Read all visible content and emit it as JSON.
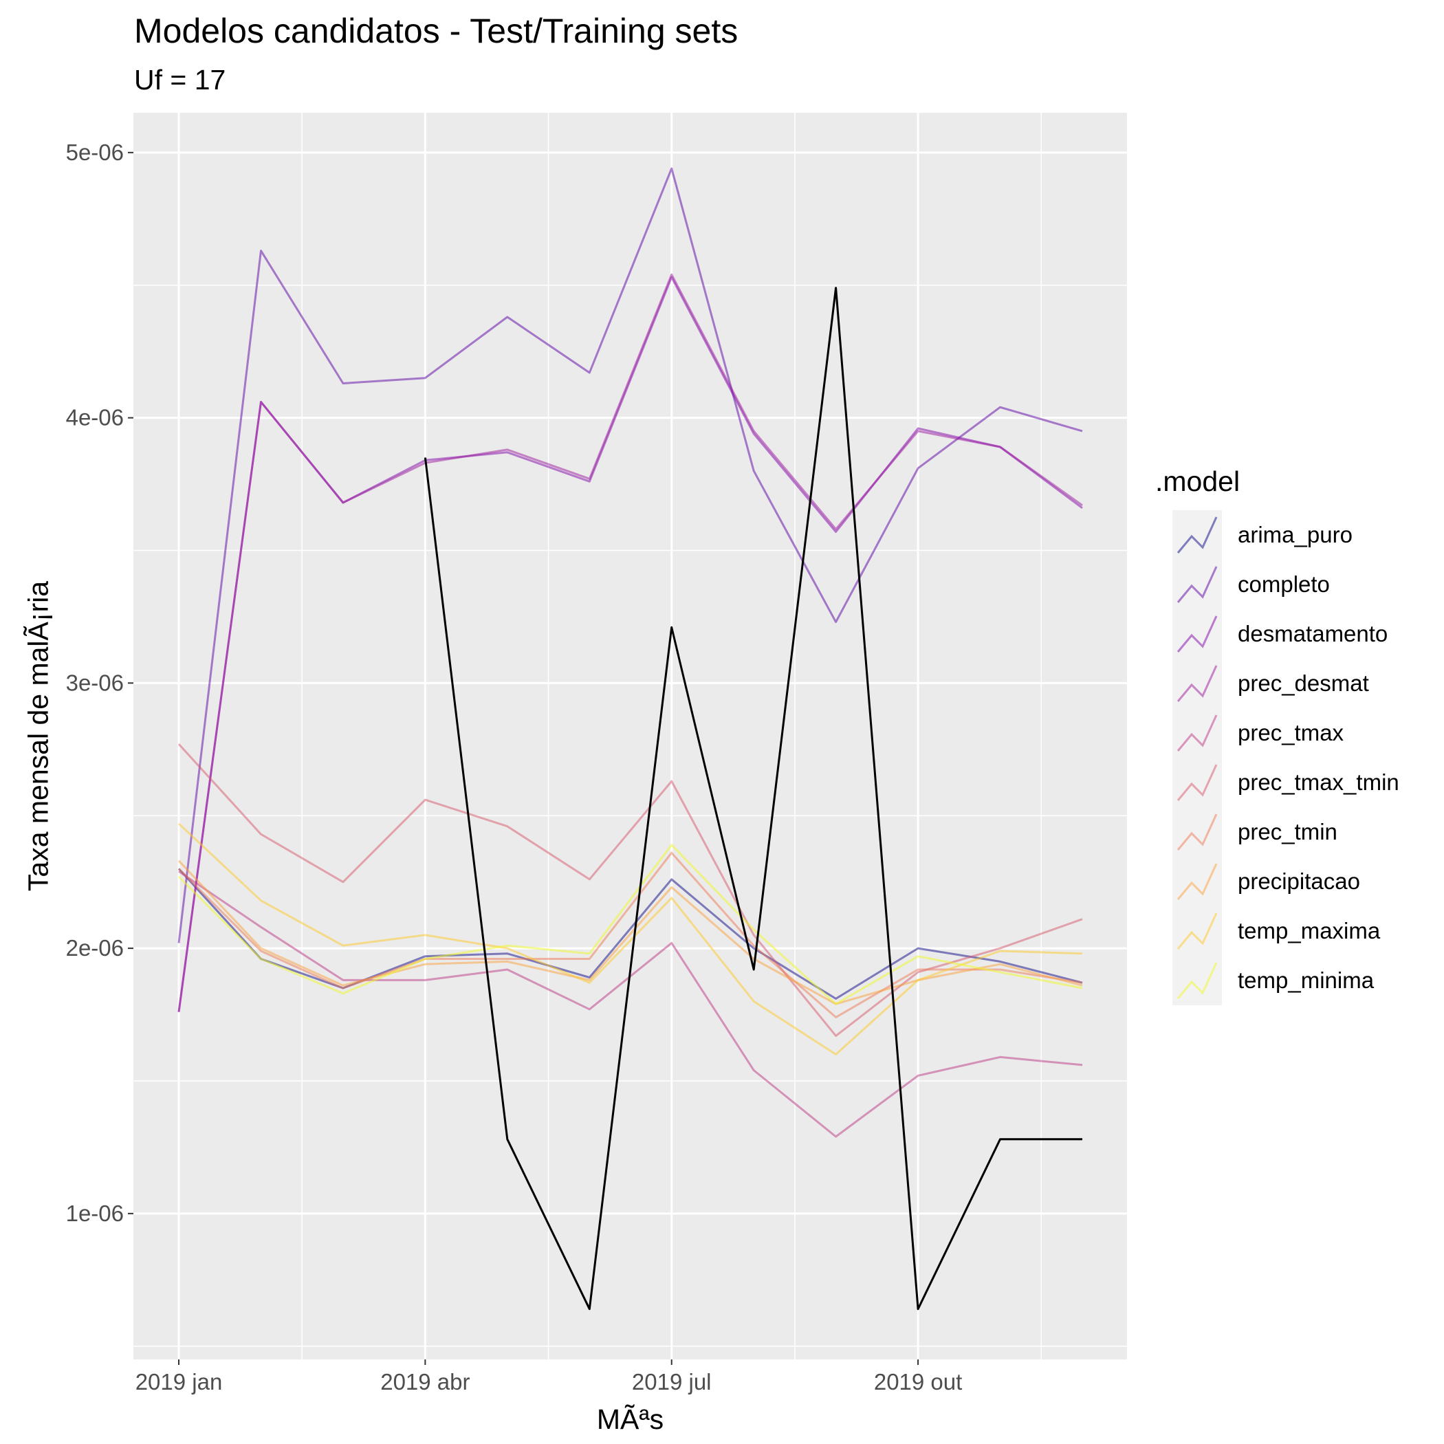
{
  "chart_data": {
    "type": "line",
    "title": "Modelos candidatos - Test/Training sets",
    "subtitle": "Uf = 17",
    "xlabel": "MÃªs",
    "ylabel": "Taxa mensal de malÃ¡ria",
    "x": [
      "2019-01",
      "2019-02",
      "2019-03",
      "2019-04",
      "2019-05",
      "2019-06",
      "2019-07",
      "2019-08",
      "2019-09",
      "2019-10",
      "2019-11",
      "2019-12"
    ],
    "x_tick_labels": [
      "2019 jan",
      "2019 abr",
      "2019 jul",
      "2019 out"
    ],
    "x_tick_months": [
      "2019-01",
      "2019-04",
      "2019-07",
      "2019-10"
    ],
    "y_tick_labels": [
      "1e-06",
      "2e-06",
      "3e-06",
      "4e-06",
      "5e-06"
    ],
    "y_tick_values": [
      1e-06,
      2e-06,
      3e-06,
      4e-06,
      5e-06
    ],
    "ylim": [
      4.5e-07,
      5.15e-06
    ],
    "grid": true,
    "legend_title": ".model",
    "legend_position": "right",
    "actual": {
      "color": "#000000",
      "start_index": 3,
      "values": [
        3.85e-06,
        1.28e-06,
        6.4e-07,
        3.21e-06,
        1.92e-06,
        4.49e-06,
        6.4e-07,
        1.28e-06,
        1.28e-06
      ]
    },
    "series": [
      {
        "name": "arima_puro",
        "color": "#0d0887",
        "values": [
          2.3e-06,
          1.96e-06,
          1.85e-06,
          1.97e-06,
          1.98e-06,
          1.89e-06,
          2.26e-06,
          2e-06,
          1.81e-06,
          2e-06,
          1.95e-06,
          1.87e-06
        ]
      },
      {
        "name": "completo",
        "color": "#5c01a6",
        "values": [
          2.02e-06,
          4.63e-06,
          4.13e-06,
          4.15e-06,
          4.38e-06,
          4.17e-06,
          4.94e-06,
          3.8e-06,
          3.23e-06,
          3.81e-06,
          4.04e-06,
          3.95e-06
        ]
      },
      {
        "name": "desmatamento",
        "color": "#7e03a8",
        "values": [
          1.76e-06,
          4.06e-06,
          3.68e-06,
          3.84e-06,
          3.87e-06,
          3.76e-06,
          4.53e-06,
          3.94e-06,
          3.57e-06,
          3.96e-06,
          3.89e-06,
          3.66e-06
        ]
      },
      {
        "name": "prec_desmat",
        "color": "#9c179e",
        "values": [
          1.76e-06,
          4.06e-06,
          3.68e-06,
          3.83e-06,
          3.88e-06,
          3.77e-06,
          4.54e-06,
          3.95e-06,
          3.58e-06,
          3.95e-06,
          3.89e-06,
          3.67e-06
        ]
      },
      {
        "name": "prec_tmax",
        "color": "#bd3786",
        "values": [
          2.29e-06,
          2.08e-06,
          1.88e-06,
          1.88e-06,
          1.92e-06,
          1.77e-06,
          2.02e-06,
          1.54e-06,
          1.29e-06,
          1.52e-06,
          1.59e-06,
          1.56e-06
        ]
      },
      {
        "name": "prec_tmax_tmin",
        "color": "#d8576b",
        "values": [
          2.77e-06,
          2.43e-06,
          2.25e-06,
          2.56e-06,
          2.46e-06,
          2.26e-06,
          2.63e-06,
          2.05e-06,
          1.67e-06,
          1.91e-06,
          2e-06,
          2.11e-06
        ]
      },
      {
        "name": "prec_tmin",
        "color": "#ed7953",
        "values": [
          2.3e-06,
          1.99e-06,
          1.85e-06,
          1.96e-06,
          1.96e-06,
          1.96e-06,
          2.36e-06,
          2.01e-06,
          1.74e-06,
          1.92e-06,
          1.92e-06,
          1.87e-06
        ]
      },
      {
        "name": "precipitacao",
        "color": "#fb9f3a",
        "values": [
          2.33e-06,
          2e-06,
          1.86e-06,
          1.94e-06,
          1.95e-06,
          1.88e-06,
          2.23e-06,
          1.96e-06,
          1.79e-06,
          1.88e-06,
          1.94e-06,
          1.86e-06
        ]
      },
      {
        "name": "temp_maxima",
        "color": "#fdca26",
        "values": [
          2.47e-06,
          2.18e-06,
          2.01e-06,
          2.05e-06,
          2e-06,
          1.87e-06,
          2.19e-06,
          1.8e-06,
          1.6e-06,
          1.88e-06,
          1.99e-06,
          1.98e-06
        ]
      },
      {
        "name": "temp_minima",
        "color": "#f0f921",
        "values": [
          2.27e-06,
          1.96e-06,
          1.83e-06,
          1.96e-06,
          2.01e-06,
          1.98e-06,
          2.39e-06,
          2.07e-06,
          1.79e-06,
          1.97e-06,
          1.91e-06,
          1.85e-06
        ]
      }
    ]
  }
}
